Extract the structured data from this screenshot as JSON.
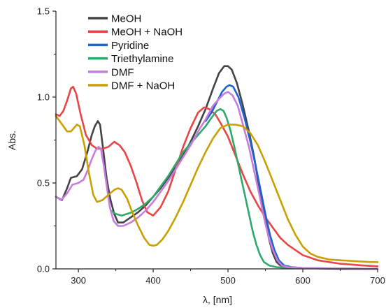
{
  "chart_data": {
    "type": "line",
    "xlabel": "λ, [nm]",
    "ylabel": "Abs.",
    "xlim": [
      270,
      700
    ],
    "ylim": [
      0,
      1.5
    ],
    "x_ticks": [
      300,
      400,
      500,
      600,
      700
    ],
    "y_ticks": [
      0.0,
      0.5,
      1.0,
      1.5
    ],
    "x_tick_labels": [
      "300",
      "400",
      "500",
      "600",
      "700"
    ],
    "y_tick_labels": [
      "0.0",
      "0.5",
      "1.0",
      "1.5"
    ],
    "grid": false,
    "legend_position": "top-left",
    "series": [
      {
        "name": "MeOH",
        "color": "#444444",
        "points": [
          [
            270,
            0.42
          ],
          [
            278,
            0.4
          ],
          [
            285,
            0.47
          ],
          [
            290,
            0.53
          ],
          [
            298,
            0.54
          ],
          [
            305,
            0.58
          ],
          [
            312,
            0.68
          ],
          [
            318,
            0.78
          ],
          [
            322,
            0.83
          ],
          [
            326,
            0.86
          ],
          [
            329,
            0.84
          ],
          [
            333,
            0.7
          ],
          [
            338,
            0.52
          ],
          [
            343,
            0.4
          ],
          [
            348,
            0.32
          ],
          [
            353,
            0.27
          ],
          [
            360,
            0.27
          ],
          [
            370,
            0.3
          ],
          [
            380,
            0.33
          ],
          [
            390,
            0.37
          ],
          [
            400,
            0.42
          ],
          [
            410,
            0.47
          ],
          [
            420,
            0.53
          ],
          [
            430,
            0.59
          ],
          [
            440,
            0.66
          ],
          [
            450,
            0.74
          ],
          [
            460,
            0.83
          ],
          [
            470,
            0.93
          ],
          [
            480,
            1.05
          ],
          [
            488,
            1.14
          ],
          [
            495,
            1.18
          ],
          [
            500,
            1.18
          ],
          [
            505,
            1.16
          ],
          [
            512,
            1.08
          ],
          [
            520,
            0.95
          ],
          [
            528,
            0.8
          ],
          [
            535,
            0.65
          ],
          [
            540,
            0.52
          ],
          [
            545,
            0.4
          ],
          [
            550,
            0.28
          ],
          [
            555,
            0.17
          ],
          [
            560,
            0.09
          ],
          [
            565,
            0.04
          ],
          [
            570,
            0.02
          ],
          [
            580,
            0.01
          ],
          [
            600,
            0.005
          ],
          [
            650,
            0.0
          ],
          [
            700,
            0.0
          ]
        ]
      },
      {
        "name": "MeOH + NaOH",
        "color": "#e84545",
        "points": [
          [
            270,
            0.9
          ],
          [
            275,
            0.89
          ],
          [
            280,
            0.92
          ],
          [
            285,
            0.98
          ],
          [
            290,
            1.05
          ],
          [
            293,
            1.06
          ],
          [
            297,
            1.02
          ],
          [
            303,
            0.9
          ],
          [
            310,
            0.78
          ],
          [
            318,
            0.72
          ],
          [
            325,
            0.7
          ],
          [
            333,
            0.7
          ],
          [
            340,
            0.71
          ],
          [
            348,
            0.74
          ],
          [
            355,
            0.72
          ],
          [
            362,
            0.68
          ],
          [
            370,
            0.6
          ],
          [
            378,
            0.5
          ],
          [
            385,
            0.4
          ],
          [
            392,
            0.33
          ],
          [
            400,
            0.31
          ],
          [
            410,
            0.36
          ],
          [
            420,
            0.45
          ],
          [
            430,
            0.58
          ],
          [
            440,
            0.71
          ],
          [
            450,
            0.82
          ],
          [
            460,
            0.91
          ],
          [
            468,
            0.94
          ],
          [
            475,
            0.93
          ],
          [
            483,
            0.9
          ],
          [
            490,
            0.85
          ],
          [
            500,
            0.77
          ],
          [
            510,
            0.66
          ],
          [
            520,
            0.55
          ],
          [
            530,
            0.45
          ],
          [
            540,
            0.37
          ],
          [
            550,
            0.3
          ],
          [
            560,
            0.24
          ],
          [
            570,
            0.18
          ],
          [
            580,
            0.14
          ],
          [
            590,
            0.11
          ],
          [
            600,
            0.08
          ],
          [
            620,
            0.05
          ],
          [
            650,
            0.03
          ],
          [
            680,
            0.02
          ],
          [
            700,
            0.015
          ]
        ]
      },
      {
        "name": "Pyridine",
        "color": "#1f63d0",
        "points": [
          [
            470,
            0.86
          ],
          [
            478,
            0.91
          ],
          [
            485,
            0.97
          ],
          [
            492,
            1.03
          ],
          [
            498,
            1.06
          ],
          [
            502,
            1.07
          ],
          [
            507,
            1.06
          ],
          [
            514,
            1.0
          ],
          [
            522,
            0.88
          ],
          [
            530,
            0.74
          ],
          [
            537,
            0.6
          ],
          [
            544,
            0.45
          ],
          [
            550,
            0.32
          ],
          [
            556,
            0.2
          ],
          [
            562,
            0.11
          ],
          [
            568,
            0.05
          ],
          [
            575,
            0.02
          ],
          [
            585,
            0.01
          ],
          [
            600,
            0.005
          ],
          [
            700,
            0.0
          ]
        ]
      },
      {
        "name": "Triethylamine",
        "color": "#2ea96a",
        "points": [
          [
            343,
            0.34
          ],
          [
            350,
            0.32
          ],
          [
            358,
            0.31
          ],
          [
            365,
            0.32
          ],
          [
            372,
            0.33
          ],
          [
            380,
            0.35
          ],
          [
            390,
            0.38
          ],
          [
            400,
            0.42
          ],
          [
            410,
            0.48
          ],
          [
            420,
            0.54
          ],
          [
            430,
            0.61
          ],
          [
            440,
            0.68
          ],
          [
            450,
            0.73
          ],
          [
            460,
            0.78
          ],
          [
            470,
            0.83
          ],
          [
            478,
            0.88
          ],
          [
            485,
            0.92
          ],
          [
            490,
            0.93
          ],
          [
            494,
            0.92
          ],
          [
            498,
            0.88
          ],
          [
            503,
            0.81
          ],
          [
            508,
            0.72
          ],
          [
            513,
            0.62
          ],
          [
            518,
            0.52
          ],
          [
            523,
            0.42
          ],
          [
            528,
            0.32
          ],
          [
            533,
            0.22
          ],
          [
            538,
            0.14
          ],
          [
            543,
            0.08
          ],
          [
            548,
            0.04
          ],
          [
            555,
            0.02
          ],
          [
            565,
            0.01
          ],
          [
            580,
            0.005
          ],
          [
            700,
            0.0
          ]
        ]
      },
      {
        "name": "DMF",
        "color": "#c77de0",
        "points": [
          [
            270,
            0.42
          ],
          [
            277,
            0.4
          ],
          [
            285,
            0.44
          ],
          [
            292,
            0.49
          ],
          [
            300,
            0.5
          ],
          [
            307,
            0.52
          ],
          [
            313,
            0.58
          ],
          [
            318,
            0.64
          ],
          [
            323,
            0.69
          ],
          [
            327,
            0.71
          ],
          [
            330,
            0.7
          ],
          [
            334,
            0.6
          ],
          [
            338,
            0.48
          ],
          [
            342,
            0.36
          ],
          [
            347,
            0.28
          ],
          [
            353,
            0.25
          ],
          [
            360,
            0.25
          ],
          [
            370,
            0.27
          ],
          [
            380,
            0.3
          ],
          [
            390,
            0.34
          ],
          [
            400,
            0.39
          ],
          [
            410,
            0.45
          ],
          [
            420,
            0.51
          ],
          [
            430,
            0.58
          ],
          [
            440,
            0.65
          ],
          [
            450,
            0.72
          ],
          [
            460,
            0.8
          ],
          [
            470,
            0.87
          ],
          [
            480,
            0.95
          ],
          [
            488,
            0.99
          ],
          [
            495,
            1.02
          ],
          [
            500,
            1.03
          ],
          [
            506,
            1.01
          ],
          [
            513,
            0.95
          ],
          [
            520,
            0.84
          ],
          [
            528,
            0.71
          ],
          [
            535,
            0.57
          ],
          [
            542,
            0.43
          ],
          [
            548,
            0.3
          ],
          [
            554,
            0.19
          ],
          [
            560,
            0.11
          ],
          [
            566,
            0.05
          ],
          [
            572,
            0.02
          ],
          [
            580,
            0.01
          ],
          [
            600,
            0.005
          ],
          [
            700,
            0.0
          ]
        ]
      },
      {
        "name": "DMF + NaOH",
        "color": "#c9a000",
        "points": [
          [
            270,
            0.89
          ],
          [
            275,
            0.86
          ],
          [
            280,
            0.83
          ],
          [
            285,
            0.8
          ],
          [
            290,
            0.8
          ],
          [
            294,
            0.82
          ],
          [
            298,
            0.84
          ],
          [
            302,
            0.83
          ],
          [
            308,
            0.72
          ],
          [
            314,
            0.56
          ],
          [
            320,
            0.43
          ],
          [
            325,
            0.39
          ],
          [
            332,
            0.4
          ],
          [
            340,
            0.43
          ],
          [
            348,
            0.46
          ],
          [
            353,
            0.47
          ],
          [
            358,
            0.46
          ],
          [
            365,
            0.41
          ],
          [
            372,
            0.33
          ],
          [
            380,
            0.25
          ],
          [
            388,
            0.18
          ],
          [
            395,
            0.14
          ],
          [
            400,
            0.135
          ],
          [
            405,
            0.14
          ],
          [
            412,
            0.17
          ],
          [
            420,
            0.22
          ],
          [
            430,
            0.3
          ],
          [
            440,
            0.39
          ],
          [
            450,
            0.49
          ],
          [
            460,
            0.59
          ],
          [
            470,
            0.68
          ],
          [
            480,
            0.76
          ],
          [
            490,
            0.82
          ],
          [
            500,
            0.84
          ],
          [
            510,
            0.84
          ],
          [
            520,
            0.83
          ],
          [
            530,
            0.79
          ],
          [
            540,
            0.72
          ],
          [
            550,
            0.62
          ],
          [
            560,
            0.51
          ],
          [
            570,
            0.4
          ],
          [
            580,
            0.29
          ],
          [
            590,
            0.2
          ],
          [
            600,
            0.13
          ],
          [
            610,
            0.09
          ],
          [
            620,
            0.07
          ],
          [
            635,
            0.055
          ],
          [
            650,
            0.05
          ],
          [
            670,
            0.045
          ],
          [
            690,
            0.04
          ],
          [
            700,
            0.04
          ]
        ]
      }
    ]
  }
}
